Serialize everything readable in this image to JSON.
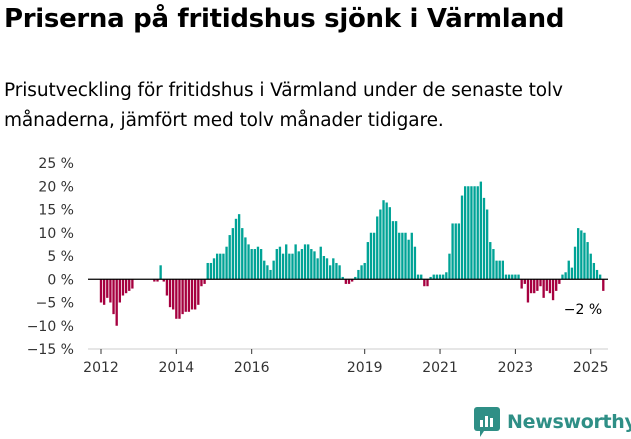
{
  "header": {
    "title": "Priserna på fritidshus sjönk i Värmland",
    "subtitle": "Prisutveckling för fritidshus i Värmland under de senaste tolv månaderna, jämfört med tolv månader tidigare."
  },
  "brand": {
    "name": "Newsworthy",
    "icon": "bar-chart-logo-icon"
  },
  "colors": {
    "positive": "#00a396",
    "negative": "#a6003f",
    "zero_line": "#000000",
    "axis_text": "#333333"
  },
  "annotation": {
    "label": "−2 %"
  },
  "chart_data": {
    "type": "bar",
    "title": "",
    "xlabel": "",
    "ylabel": "",
    "grid": false,
    "legend": "none",
    "ylim": [
      -15,
      25
    ],
    "y_ticks": [
      25,
      20,
      15,
      10,
      5,
      0,
      -5,
      -10,
      -15
    ],
    "y_tick_labels": [
      "25 %",
      "20 %",
      "15 %",
      "10 %",
      "5 %",
      "0 %",
      "−5 %",
      "−10 %",
      "−15 %"
    ],
    "x_start": "2011-10",
    "x_end": "2025-06",
    "x_ticks": [
      {
        "date": "2012-01",
        "label": "2012"
      },
      {
        "date": "2014-01",
        "label": "2014"
      },
      {
        "date": "2016-01",
        "label": "2016"
      },
      {
        "date": "2019-01",
        "label": "2019"
      },
      {
        "date": "2021-01",
        "label": "2021"
      },
      {
        "date": "2023-01",
        "label": "2023"
      },
      {
        "date": "2025-01",
        "label": "2025"
      }
    ],
    "series": [
      {
        "points": [
          [
            "2012-01",
            -5
          ],
          [
            "2012-02",
            -5.5
          ],
          [
            "2012-03",
            -4
          ],
          [
            "2012-04",
            -5
          ],
          [
            "2012-05",
            -7.5
          ],
          [
            "2012-06",
            -10
          ],
          [
            "2012-07",
            -5
          ],
          [
            "2012-08",
            -3.5
          ],
          [
            "2012-09",
            -3
          ],
          [
            "2012-10",
            -2.5
          ],
          [
            "2012-11",
            -2
          ],
          [
            "2013-06",
            -0.5
          ],
          [
            "2013-07",
            -0.5
          ],
          [
            "2013-08",
            3
          ],
          [
            "2013-09",
            -0.5
          ],
          [
            "2013-10",
            -3.5
          ],
          [
            "2013-11",
            -6
          ],
          [
            "2013-12",
            -6.5
          ],
          [
            "2014-01",
            -8.5
          ],
          [
            "2014-02",
            -8.5
          ],
          [
            "2014-03",
            -7.5
          ],
          [
            "2014-04",
            -7
          ],
          [
            "2014-05",
            -7
          ],
          [
            "2014-06",
            -6.5
          ],
          [
            "2014-07",
            -6.5
          ],
          [
            "2014-08",
            -5.5
          ],
          [
            "2014-09",
            -1.5
          ],
          [
            "2014-10",
            -1
          ],
          [
            "2014-11",
            3.5
          ],
          [
            "2014-12",
            3.5
          ],
          [
            "2015-01",
            4.5
          ],
          [
            "2015-02",
            5.5
          ],
          [
            "2015-03",
            5.5
          ],
          [
            "2015-04",
            5.5
          ],
          [
            "2015-05",
            7
          ],
          [
            "2015-06",
            9.5
          ],
          [
            "2015-07",
            11
          ],
          [
            "2015-08",
            13
          ],
          [
            "2015-09",
            14
          ],
          [
            "2015-10",
            11
          ],
          [
            "2015-11",
            9
          ],
          [
            "2015-12",
            7.5
          ],
          [
            "2016-01",
            6.5
          ],
          [
            "2016-02",
            6.5
          ],
          [
            "2016-03",
            7
          ],
          [
            "2016-04",
            6.5
          ],
          [
            "2016-05",
            4
          ],
          [
            "2016-06",
            3
          ],
          [
            "2016-07",
            2
          ],
          [
            "2016-08",
            4
          ],
          [
            "2016-09",
            6.5
          ],
          [
            "2016-10",
            7
          ],
          [
            "2016-11",
            5.5
          ],
          [
            "2016-12",
            7.5
          ],
          [
            "2017-01",
            5.5
          ],
          [
            "2017-02",
            5.5
          ],
          [
            "2017-03",
            7.5
          ],
          [
            "2017-04",
            6
          ],
          [
            "2017-05",
            6.5
          ],
          [
            "2017-06",
            7.5
          ],
          [
            "2017-07",
            7.5
          ],
          [
            "2017-08",
            6.5
          ],
          [
            "2017-09",
            6
          ],
          [
            "2017-10",
            4.5
          ],
          [
            "2017-11",
            7
          ],
          [
            "2017-12",
            5
          ],
          [
            "2018-01",
            4.5
          ],
          [
            "2018-02",
            3
          ],
          [
            "2018-03",
            4.5
          ],
          [
            "2018-04",
            3.5
          ],
          [
            "2018-05",
            3
          ],
          [
            "2018-06",
            0.5
          ],
          [
            "2018-07",
            -1
          ],
          [
            "2018-08",
            -1
          ],
          [
            "2018-09",
            -0.5
          ],
          [
            "2018-10",
            0.5
          ],
          [
            "2018-11",
            2
          ],
          [
            "2018-12",
            3
          ],
          [
            "2019-01",
            3.5
          ],
          [
            "2019-02",
            8
          ],
          [
            "2019-03",
            10
          ],
          [
            "2019-04",
            10
          ],
          [
            "2019-05",
            13.5
          ],
          [
            "2019-06",
            15
          ],
          [
            "2019-07",
            17
          ],
          [
            "2019-08",
            16.5
          ],
          [
            "2019-09",
            15.5
          ],
          [
            "2019-10",
            12.5
          ],
          [
            "2019-11",
            12.5
          ],
          [
            "2019-12",
            10
          ],
          [
            "2020-01",
            10
          ],
          [
            "2020-02",
            10
          ],
          [
            "2020-03",
            8.5
          ],
          [
            "2020-04",
            10
          ],
          [
            "2020-05",
            7
          ],
          [
            "2020-06",
            1
          ],
          [
            "2020-07",
            1
          ],
          [
            "2020-08",
            -1.5
          ],
          [
            "2020-09",
            -1.5
          ],
          [
            "2020-10",
            0.5
          ],
          [
            "2020-11",
            1
          ],
          [
            "2020-12",
            1
          ],
          [
            "2021-01",
            1
          ],
          [
            "2021-02",
            1
          ],
          [
            "2021-03",
            1.5
          ],
          [
            "2021-04",
            5.5
          ],
          [
            "2021-05",
            12
          ],
          [
            "2021-06",
            12
          ],
          [
            "2021-07",
            12
          ],
          [
            "2021-08",
            18
          ],
          [
            "2021-09",
            20
          ],
          [
            "2021-10",
            20
          ],
          [
            "2021-11",
            20
          ],
          [
            "2021-12",
            20
          ],
          [
            "2022-01",
            20
          ],
          [
            "2022-02",
            21
          ],
          [
            "2022-03",
            17.5
          ],
          [
            "2022-04",
            15
          ],
          [
            "2022-05",
            8
          ],
          [
            "2022-06",
            6.5
          ],
          [
            "2022-07",
            4
          ],
          [
            "2022-08",
            4
          ],
          [
            "2022-09",
            4
          ],
          [
            "2022-10",
            1
          ],
          [
            "2022-11",
            1
          ],
          [
            "2022-12",
            1
          ],
          [
            "2023-01",
            1
          ],
          [
            "2023-02",
            1
          ],
          [
            "2023-03",
            -2
          ],
          [
            "2023-04",
            -1
          ],
          [
            "2023-05",
            -5
          ],
          [
            "2023-06",
            -3
          ],
          [
            "2023-07",
            -3
          ],
          [
            "2023-08",
            -2.5
          ],
          [
            "2023-09",
            -1.5
          ],
          [
            "2023-10",
            -4
          ],
          [
            "2023-11",
            -2.5
          ],
          [
            "2023-12",
            -3
          ],
          [
            "2024-01",
            -4.5
          ],
          [
            "2024-02",
            -2.5
          ],
          [
            "2024-03",
            -1
          ],
          [
            "2024-04",
            1
          ],
          [
            "2024-05",
            1.5
          ],
          [
            "2024-06",
            4
          ],
          [
            "2024-07",
            2.5
          ],
          [
            "2024-08",
            7
          ],
          [
            "2024-09",
            11
          ],
          [
            "2024-10",
            10.5
          ],
          [
            "2024-11",
            10
          ],
          [
            "2024-12",
            8
          ],
          [
            "2025-01",
            5.5
          ],
          [
            "2025-02",
            3.5
          ],
          [
            "2025-03",
            2
          ],
          [
            "2025-04",
            1
          ],
          [
            "2025-05",
            -2.5
          ]
        ]
      }
    ]
  }
}
